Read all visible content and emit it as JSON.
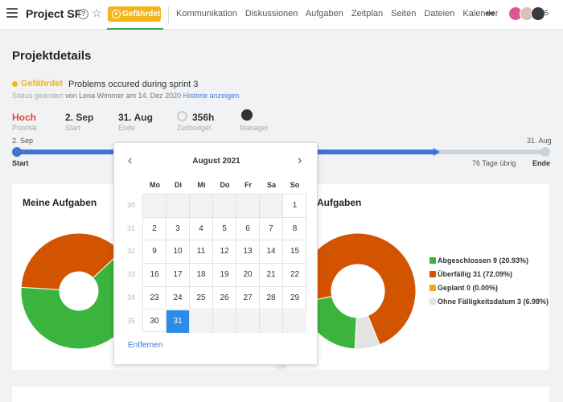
{
  "header": {
    "project_title": "Project SF",
    "status_button": "Gefährdet",
    "nav": [
      "Kommunikation",
      "Diskussionen",
      "Aufgaben",
      "Zeitplan",
      "Seiten",
      "Dateien",
      "Kalender"
    ],
    "more": "•••",
    "member_count": "5"
  },
  "details": {
    "title": "Projektdetails",
    "status_label": "Gefährdet",
    "status_text": "Problems occured during sprint 3",
    "changed_prefix": "Status geändert",
    "changed_by": "von Lena Wimmer am 14. Dez 2020",
    "history_link": "Historie anzeigen",
    "priority_value": "Hoch",
    "priority_label": "Priorität",
    "start_value": "2. Sep",
    "start_label": "Start",
    "end_value": "31. Aug",
    "end_label": "Ende",
    "budget_value": "356h",
    "budget_label": "Zeitbudget",
    "manager_label": "Manager"
  },
  "timeline": {
    "start_date": "2. Sep",
    "end_date": "31. Aug",
    "start_label": "Start",
    "end_label": "Ende",
    "remaining": "76 Tage übrig",
    "progress": 0.79
  },
  "panels": {
    "my_tasks_title": "Meine Aufgaben",
    "all_tasks_title": "Aufgaben"
  },
  "chart_data": [
    {
      "type": "pie",
      "title": "Meine Aufgaben",
      "slices": [
        {
          "value": 63,
          "color": "#3ab43c"
        },
        {
          "value": 37,
          "color": "#d35400"
        }
      ]
    },
    {
      "type": "pie",
      "title": "Aufgaben",
      "slices": [
        {
          "label": "Abgeschlossen 9 (20.93%)",
          "value": 20.93,
          "color": "#3ab43c"
        },
        {
          "label": "Überfällig 31 (72.09%)",
          "value": 72.09,
          "color": "#d35400"
        },
        {
          "label": "Geplant 0 (0.00%)",
          "value": 0.0,
          "color": "#f2a71b"
        },
        {
          "label": "Ohne Fälligkeitsdatum 3 (6.98%)",
          "value": 6.98,
          "color": "#e3e3e3"
        }
      ]
    }
  ],
  "datepicker": {
    "month_label": "August 2021",
    "weekdays": [
      "Mo",
      "Di",
      "Mi",
      "Do",
      "Fr",
      "Sa",
      "So"
    ],
    "week_numbers": [
      "30",
      "31",
      "32",
      "33",
      "34",
      "35"
    ],
    "weeks": [
      [
        "",
        "",
        "",
        "",
        "",
        "",
        "1"
      ],
      [
        "2",
        "3",
        "4",
        "5",
        "6",
        "7",
        "8"
      ],
      [
        "9",
        "10",
        "11",
        "12",
        "13",
        "14",
        "15"
      ],
      [
        "16",
        "17",
        "18",
        "19",
        "20",
        "21",
        "22"
      ],
      [
        "23",
        "24",
        "25",
        "26",
        "27",
        "28",
        "29"
      ],
      [
        "30",
        "31",
        "",
        "",
        "",
        "",
        ""
      ]
    ],
    "selected_day": "31",
    "remove_label": "Entfernen"
  }
}
